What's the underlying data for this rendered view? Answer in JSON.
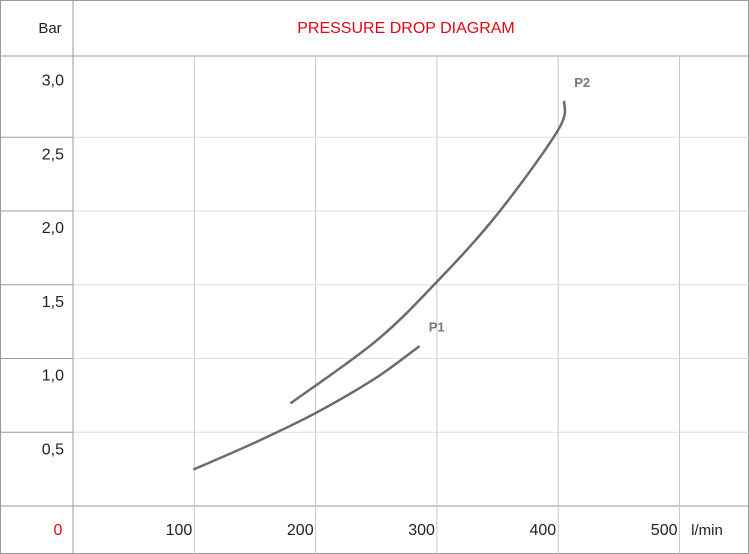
{
  "header": {
    "y_unit_label": "Bar",
    "title": "PRESSURE DROP DIAGRAM",
    "title_color": "#e30613"
  },
  "footer": {
    "origin_label": "0",
    "origin_color": "#e30613",
    "x_unit_label": "l/min"
  },
  "chart_data": {
    "type": "line",
    "title": "PRESSURE DROP DIAGRAM",
    "xlabel": "l/min",
    "ylabel": "Bar",
    "xlim": [
      0,
      500
    ],
    "ylim": [
      0,
      3.0
    ],
    "grid": true,
    "x_tick_labels": [
      "100",
      "200",
      "300",
      "400",
      "500"
    ],
    "y_tick_labels": [
      "3,0",
      "2,5",
      "2,0",
      "1,5",
      "1,0",
      "0,5"
    ],
    "series": [
      {
        "name": "P1",
        "color": "#6b6b6b",
        "x": [
          100,
          150,
          200,
          250,
          285
        ],
        "y": [
          0.25,
          0.43,
          0.63,
          0.87,
          1.08
        ]
      },
      {
        "name": "P2",
        "color": "#6b6b6b",
        "x": [
          180,
          250,
          300,
          350,
          400,
          405
        ],
        "y": [
          0.7,
          1.12,
          1.52,
          1.98,
          2.55,
          2.74
        ]
      }
    ]
  }
}
